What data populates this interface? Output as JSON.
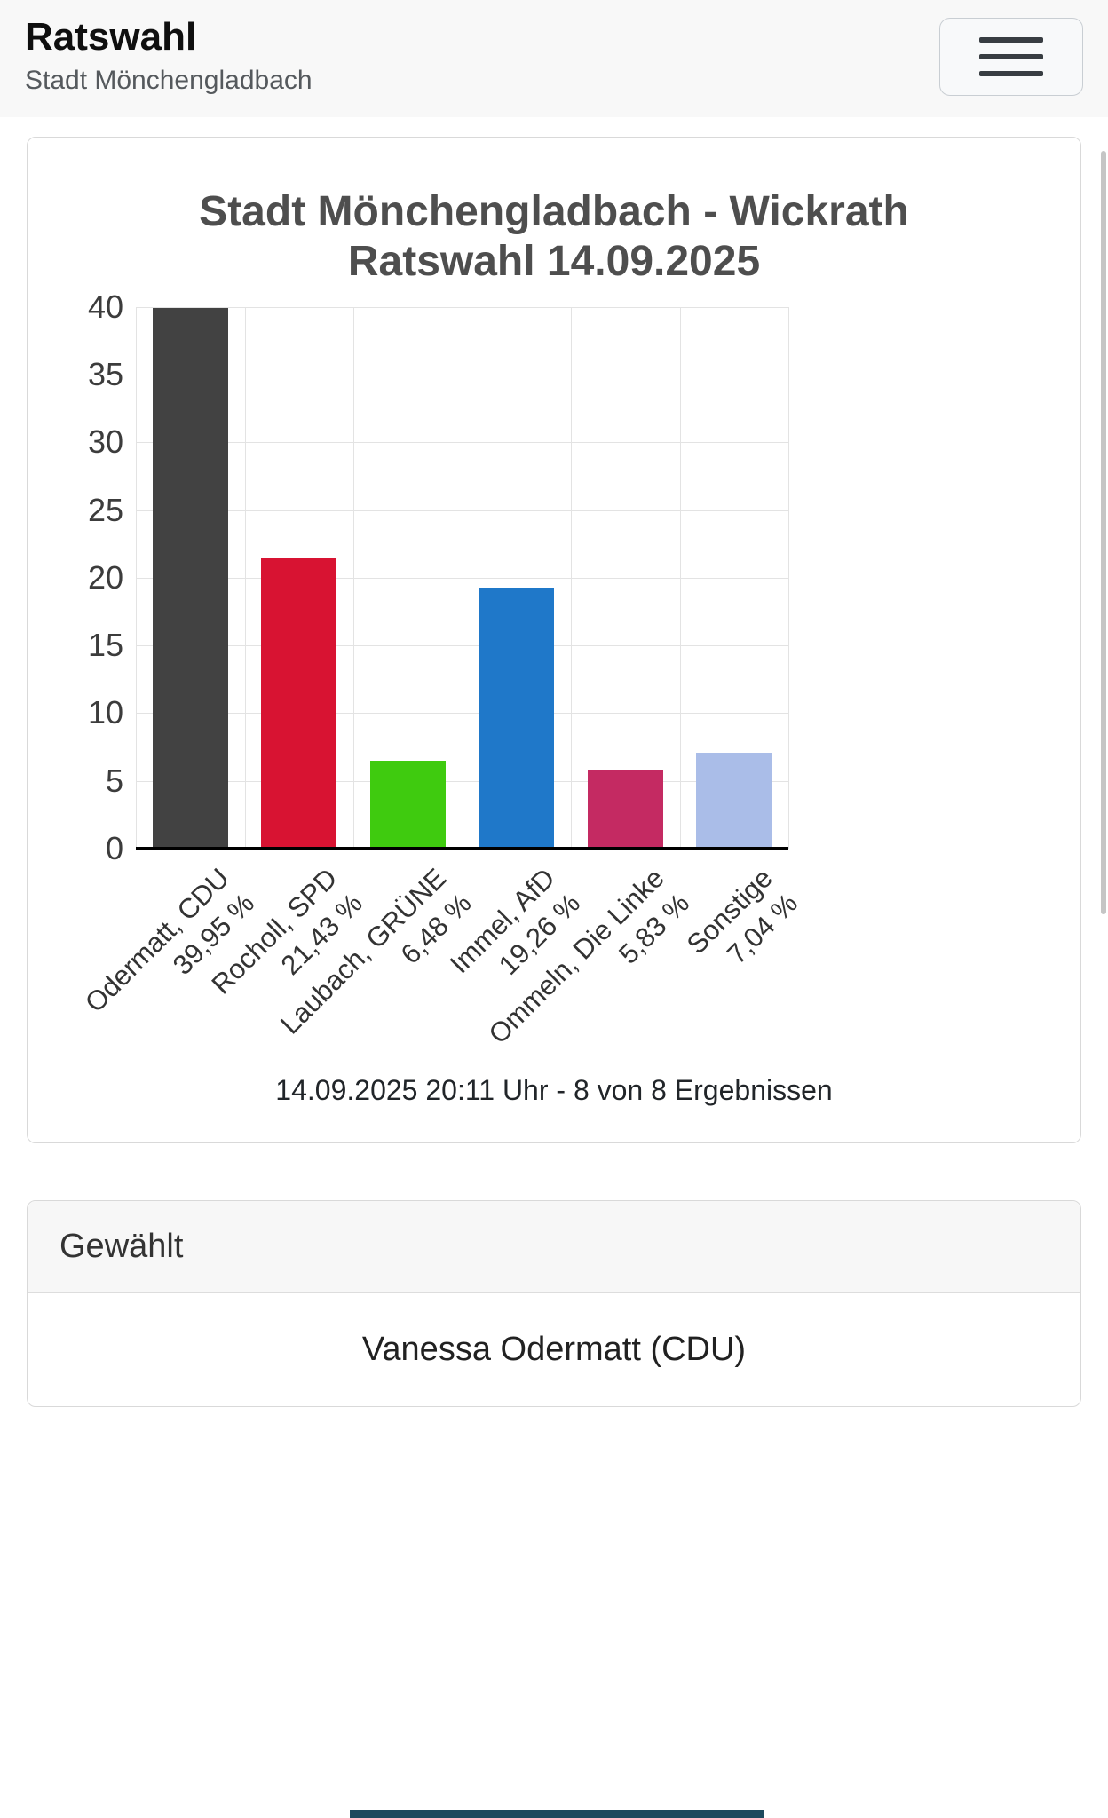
{
  "header": {
    "title": "Ratswahl",
    "subtitle": "Stadt Mönchengladbach",
    "menu_icon": "hamburger-icon"
  },
  "chart_card": {
    "caption": "14.09.2025 20:11 Uhr - 8 von 8 Ergebnissen"
  },
  "chart_data": {
    "type": "bar",
    "title": "Stadt Mönchengladbach - Wickrath Ratswahl 14.09.2025",
    "title_lines": [
      "Stadt Mönchengladbach - Wickrath",
      "Ratswahl 14.09.2025"
    ],
    "categories": [
      "Odermatt, CDU",
      "Rocholl, SPD",
      "Laubach, GRÜNE",
      "Immel, AfD",
      "Ommeln, Die Linke",
      "Sonstige"
    ],
    "value_labels": [
      "39,95 %",
      "21,43 %",
      "6,48 %",
      "19,26 %",
      "5,83 %",
      "7,04 %"
    ],
    "values": [
      39.95,
      21.43,
      6.48,
      19.26,
      5.83,
      7.04
    ],
    "colors": [
      "#424242",
      "#d81332",
      "#3fcb0f",
      "#1f78c9",
      "#c42a62",
      "#aabde8"
    ],
    "ylim": [
      0,
      40
    ],
    "yticks": [
      0,
      5,
      10,
      15,
      20,
      25,
      30,
      35,
      40
    ],
    "grid": true,
    "legend": false,
    "xlabel": "",
    "ylabel": ""
  },
  "result_card": {
    "header": "Gewählt",
    "value": "Vanessa Odermatt (CDU)"
  },
  "misc": {
    "footer_strip_color": "#1d4a5e"
  }
}
